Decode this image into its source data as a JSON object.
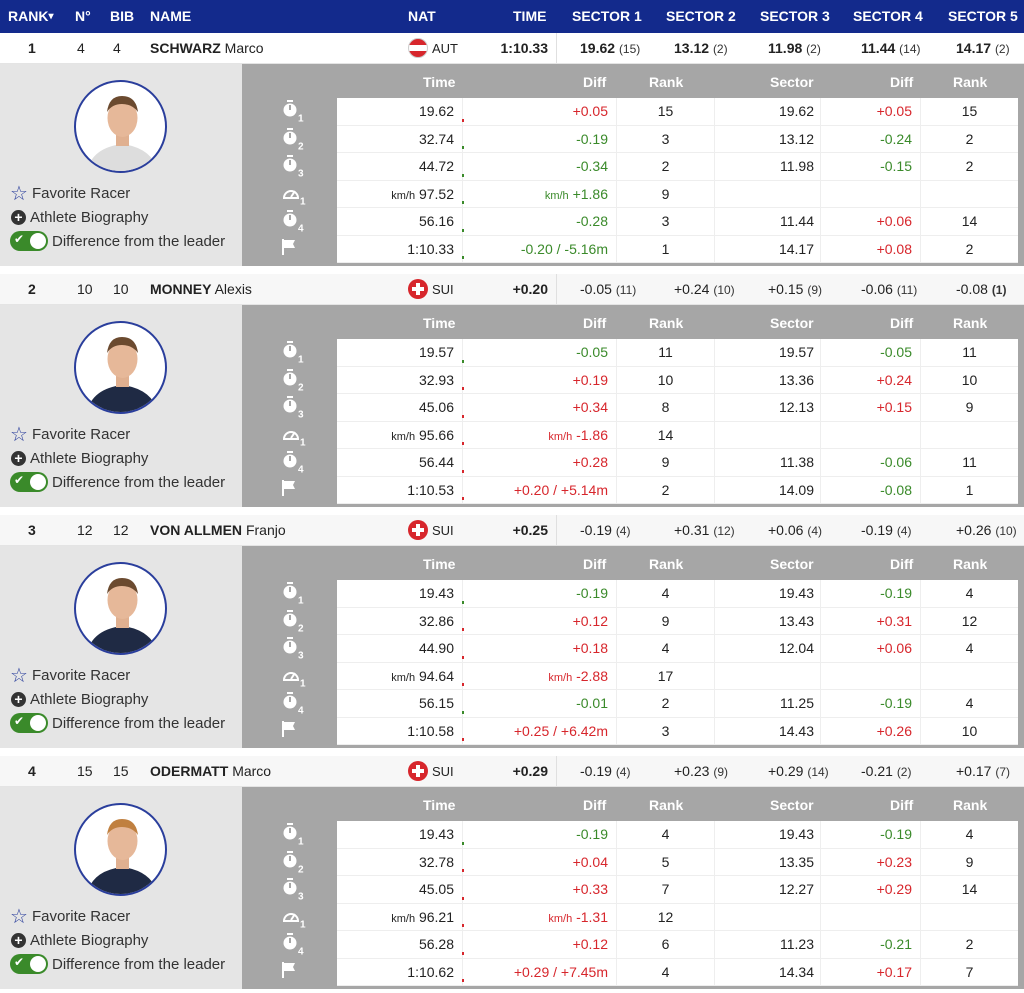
{
  "header": {
    "rank": "RANK",
    "sort_icon": "▾",
    "no": "N°",
    "bib": "BIB",
    "name": "NAME",
    "nat": "NAT",
    "time": "TIME",
    "sectors": [
      "SECTOR 1",
      "SECTOR 2",
      "SECTOR 3",
      "SECTOR 4",
      "SECTOR 5"
    ]
  },
  "colors": {
    "header_bg": "#132a8c",
    "better": "#3a8a2a",
    "worse": "#d7262c"
  },
  "detail_headers": {
    "time": "Time",
    "diff": "Diff",
    "rank": "Rank",
    "sector": "Sector",
    "sdiff": "Diff",
    "srank": "Rank"
  },
  "links": {
    "favorite": "Favorite Racer",
    "bio": "Athlete Biography",
    "diff_toggle": "Difference from the leader"
  },
  "speed_unit": "km/h",
  "racers": [
    {
      "rank": "1",
      "no": "4",
      "bib": "4",
      "last": "SCHWARZ",
      "first": "Marco",
      "nat": "AUT",
      "time": "1:10.33",
      "sectors": [
        [
          "19.62",
          "(15)"
        ],
        [
          "13.12",
          "(2)"
        ],
        [
          "11.98",
          "(2)"
        ],
        [
          "11.44",
          "(14)"
        ],
        [
          "14.17",
          "(2)"
        ]
      ],
      "toggle_on": true,
      "rows": [
        [
          "stopwatch",
          "1",
          "19.62",
          "+0.05",
          "15",
          "19.62",
          "+0.05",
          "15"
        ],
        [
          "stopwatch",
          "2",
          "32.74",
          "-0.19",
          "3",
          "13.12",
          "-0.24",
          "2"
        ],
        [
          "stopwatch",
          "3",
          "44.72",
          "-0.34",
          "2",
          "11.98",
          "-0.15",
          "2"
        ],
        [
          "speed",
          "1",
          "97.52",
          "+1.86",
          "9",
          "",
          "",
          ""
        ],
        [
          "stopwatch",
          "4",
          "56.16",
          "-0.28",
          "3",
          "11.44",
          "+0.06",
          "14"
        ],
        [
          "finish",
          "",
          "1:10.33",
          "-0.20 / -5.16m",
          "1",
          "14.17",
          "+0.08",
          "2"
        ]
      ]
    },
    {
      "rank": "2",
      "no": "10",
      "bib": "10",
      "last": "MONNEY",
      "first": "Alexis",
      "nat": "SUI",
      "time": "+0.20",
      "sectors": [
        [
          "-0.05",
          "(11)"
        ],
        [
          "+0.24",
          "(10)"
        ],
        [
          "+0.15",
          "(9)"
        ],
        [
          "-0.06",
          "(11)"
        ],
        [
          "-0.08",
          "(1)"
        ]
      ],
      "toggle_on": true,
      "rows": [
        [
          "stopwatch",
          "1",
          "19.57",
          "-0.05",
          "11",
          "19.57",
          "-0.05",
          "11"
        ],
        [
          "stopwatch",
          "2",
          "32.93",
          "+0.19",
          "10",
          "13.36",
          "+0.24",
          "10"
        ],
        [
          "stopwatch",
          "3",
          "45.06",
          "+0.34",
          "8",
          "12.13",
          "+0.15",
          "9"
        ],
        [
          "speed",
          "1",
          "95.66",
          "-1.86",
          "14",
          "",
          "",
          ""
        ],
        [
          "stopwatch",
          "4",
          "56.44",
          "+0.28",
          "9",
          "11.38",
          "-0.06",
          "11"
        ],
        [
          "finish",
          "",
          "1:10.53",
          "+0.20 / +5.14m",
          "2",
          "14.09",
          "-0.08",
          "1"
        ]
      ]
    },
    {
      "rank": "3",
      "no": "12",
      "bib": "12",
      "last": "VON ALLMEN",
      "first": "Franjo",
      "nat": "SUI",
      "time": "+0.25",
      "sectors": [
        [
          "-0.19",
          "(4)"
        ],
        [
          "+0.31",
          "(12)"
        ],
        [
          "+0.06",
          "(4)"
        ],
        [
          "-0.19",
          "(4)"
        ],
        [
          "+0.26",
          "(10)"
        ]
      ],
      "toggle_on": true,
      "rows": [
        [
          "stopwatch",
          "1",
          "19.43",
          "-0.19",
          "4",
          "19.43",
          "-0.19",
          "4"
        ],
        [
          "stopwatch",
          "2",
          "32.86",
          "+0.12",
          "9",
          "13.43",
          "+0.31",
          "12"
        ],
        [
          "stopwatch",
          "3",
          "44.90",
          "+0.18",
          "4",
          "12.04",
          "+0.06",
          "4"
        ],
        [
          "speed",
          "1",
          "94.64",
          "-2.88",
          "17",
          "",
          "",
          ""
        ],
        [
          "stopwatch",
          "4",
          "56.15",
          "-0.01",
          "2",
          "11.25",
          "-0.19",
          "4"
        ],
        [
          "finish",
          "",
          "1:10.58",
          "+0.25 / +6.42m",
          "3",
          "14.43",
          "+0.26",
          "10"
        ]
      ]
    },
    {
      "rank": "4",
      "no": "15",
      "bib": "15",
      "last": "ODERMATT",
      "first": "Marco",
      "nat": "SUI",
      "time": "+0.29",
      "sectors": [
        [
          "-0.19",
          "(4)"
        ],
        [
          "+0.23",
          "(9)"
        ],
        [
          "+0.29",
          "(14)"
        ],
        [
          "-0.21",
          "(2)"
        ],
        [
          "+0.17",
          "(7)"
        ]
      ],
      "toggle_on": true,
      "rows": [
        [
          "stopwatch",
          "1",
          "19.43",
          "-0.19",
          "4",
          "19.43",
          "-0.19",
          "4"
        ],
        [
          "stopwatch",
          "2",
          "32.78",
          "+0.04",
          "5",
          "13.35",
          "+0.23",
          "9"
        ],
        [
          "stopwatch",
          "3",
          "45.05",
          "+0.33",
          "7",
          "12.27",
          "+0.29",
          "14"
        ],
        [
          "speed",
          "1",
          "96.21",
          "-1.31",
          "12",
          "",
          "",
          ""
        ],
        [
          "stopwatch",
          "4",
          "56.28",
          "+0.12",
          "6",
          "11.23",
          "-0.21",
          "2"
        ],
        [
          "finish",
          "",
          "1:10.62",
          "+0.29 / +7.45m",
          "4",
          "14.34",
          "+0.17",
          "7"
        ]
      ]
    }
  ]
}
